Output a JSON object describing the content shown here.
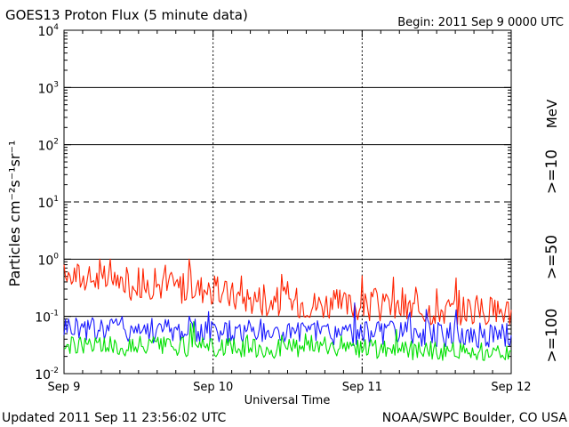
{
  "header": {
    "title": "GOES13 Proton Flux (5 minute data)",
    "begin": "Begin: 2011 Sep 9 0000 UTC"
  },
  "footer": {
    "updated": "Updated 2011 Sep 11 23:56:02 UTC",
    "credit": "NOAA/SWPC Boulder, CO USA"
  },
  "legend": {
    "unit": "MeV",
    "colors": {
      "ge10": "#ff2200",
      "ge50": "#1a1aff",
      "ge100": "#00e000"
    }
  },
  "chart_data": {
    "type": "line",
    "title": "GOES13 Proton Flux (5 minute data)",
    "xlabel": "Universal Time",
    "ylabel": "Particles cm⁻²s⁻¹sr⁻¹",
    "yscale": "log",
    "ylim": [
      0.01,
      10000
    ],
    "xlim": [
      "2011-09-09T00:00",
      "2011-09-12T00:00"
    ],
    "x_ticks": [
      "Sep 9",
      "Sep 10",
      "Sep 11",
      "Sep 12"
    ],
    "y_ticks": [
      {
        "base": "10",
        "exp": "4"
      },
      {
        "base": "10",
        "exp": "3"
      },
      {
        "base": "10",
        "exp": "2"
      },
      {
        "base": "10",
        "exp": "1"
      },
      {
        "base": "10",
        "exp": "0"
      },
      {
        "base": "10",
        "exp": "-1"
      },
      {
        "base": "10",
        "exp": "-2"
      }
    ],
    "threshold_lines": [
      {
        "value": 1000,
        "style": "solid"
      },
      {
        "value": 100,
        "style": "solid"
      },
      {
        "value": 10,
        "style": "dashed"
      },
      {
        "value": 1,
        "style": "solid"
      },
      {
        "value": 0.1,
        "style": "solid"
      }
    ],
    "series": [
      {
        "name": ">=10",
        "color": "#ff2200",
        "day_offsets": [
          0,
          0.05,
          0.1,
          0.15,
          0.2,
          0.25,
          0.3,
          0.35,
          0.4,
          0.45,
          0.5,
          0.55,
          0.6,
          0.65,
          0.7,
          0.75,
          0.8,
          0.85,
          0.9,
          0.95,
          1.0,
          1.05,
          1.1,
          1.15,
          1.2,
          1.25,
          1.3,
          1.35,
          1.4,
          1.45,
          1.5,
          1.55,
          1.6,
          1.65,
          1.7,
          1.75,
          1.8,
          1.85,
          1.9,
          1.95,
          2.0,
          2.05,
          2.1,
          2.15,
          2.2,
          2.25,
          2.3,
          2.35,
          2.4,
          2.45,
          2.5,
          2.55,
          2.6,
          2.65,
          2.7,
          2.75,
          2.8,
          2.85,
          2.9,
          2.95,
          3.0
        ],
        "values": [
          0.45,
          0.55,
          0.5,
          0.42,
          0.48,
          0.4,
          0.44,
          0.38,
          0.42,
          0.36,
          0.4,
          0.34,
          0.38,
          0.36,
          0.33,
          0.35,
          0.31,
          0.34,
          0.3,
          0.32,
          0.28,
          0.26,
          0.24,
          0.22,
          0.22,
          0.2,
          0.21,
          0.19,
          0.2,
          0.18,
          0.19,
          0.17,
          0.18,
          0.17,
          0.16,
          0.17,
          0.16,
          0.16,
          0.15,
          0.16,
          0.15,
          0.15,
          0.14,
          0.15,
          0.14,
          0.14,
          0.14,
          0.13,
          0.14,
          0.13,
          0.14,
          0.13,
          0.13,
          0.13,
          0.14,
          0.13,
          0.13,
          0.12,
          0.13,
          0.13,
          0.13
        ]
      },
      {
        "name": ">=50",
        "color": "#1a1aff",
        "day_offsets": [
          0,
          0.1,
          0.2,
          0.3,
          0.4,
          0.5,
          0.6,
          0.7,
          0.8,
          0.9,
          1.0,
          1.1,
          1.2,
          1.3,
          1.4,
          1.5,
          1.6,
          1.7,
          1.8,
          1.9,
          2.0,
          2.1,
          2.2,
          2.3,
          2.4,
          2.5,
          2.6,
          2.7,
          2.8,
          2.9,
          3.0
        ],
        "values": [
          0.07,
          0.065,
          0.06,
          0.065,
          0.062,
          0.06,
          0.058,
          0.06,
          0.057,
          0.056,
          0.055,
          0.055,
          0.053,
          0.054,
          0.052,
          0.053,
          0.051,
          0.052,
          0.05,
          0.051,
          0.05,
          0.05,
          0.049,
          0.05,
          0.048,
          0.049,
          0.048,
          0.048,
          0.047,
          0.048,
          0.047
        ]
      },
      {
        "name": ">=100",
        "color": "#00e000",
        "day_offsets": [
          0,
          0.1,
          0.2,
          0.3,
          0.4,
          0.5,
          0.6,
          0.7,
          0.8,
          0.9,
          1.0,
          1.1,
          1.2,
          1.3,
          1.4,
          1.5,
          1.6,
          1.7,
          1.8,
          1.9,
          2.0,
          2.1,
          2.2,
          2.3,
          2.4,
          2.5,
          2.6,
          2.7,
          2.8,
          2.9,
          3.0
        ],
        "values": [
          0.03,
          0.032,
          0.03,
          0.031,
          0.03,
          0.029,
          0.03,
          0.029,
          0.029,
          0.028,
          0.029,
          0.028,
          0.028,
          0.028,
          0.027,
          0.028,
          0.027,
          0.027,
          0.027,
          0.026,
          0.027,
          0.026,
          0.026,
          0.026,
          0.026,
          0.025,
          0.026,
          0.025,
          0.025,
          0.025,
          0.025
        ]
      }
    ],
    "grid": false,
    "legend_position": "right"
  }
}
